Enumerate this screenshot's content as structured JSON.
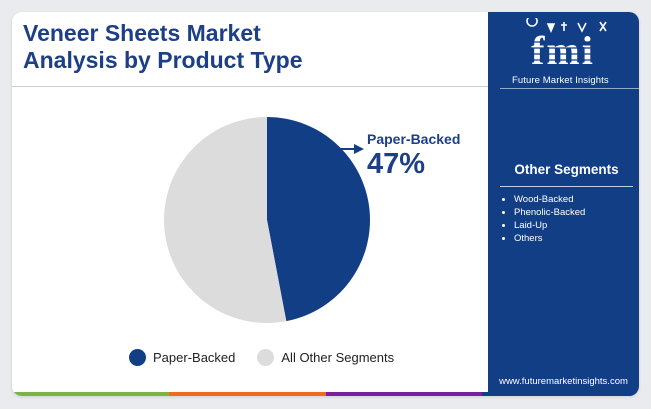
{
  "title": {
    "line1": "Veneer Sheets Market",
    "line2": "Analysis by Product Type"
  },
  "chart_data": {
    "type": "pie",
    "title": "Veneer Sheets Market Analysis by Product Type",
    "slices": [
      {
        "label": "Paper-Backed",
        "value": 47,
        "color": "#123e86"
      },
      {
        "label": "All Other Segments",
        "value": 53,
        "color": "#dcdcdd"
      }
    ],
    "callout": {
      "label": "Paper-Backed",
      "value_text": "47%"
    },
    "legend": {
      "position": "bottom",
      "items": [
        {
          "label": "Paper-Backed",
          "color": "#123e86"
        },
        {
          "label": "All Other Segments",
          "color": "#dcdcdd"
        }
      ]
    }
  },
  "sidebar": {
    "logo_text": "fmi",
    "logo_caption": "Future Market Insights",
    "other_segments_title": "Other Segments",
    "other_segments": [
      "Wood-Backed",
      "Phenolic-Backed",
      "Laid-Up",
      "Others"
    ],
    "website": "www.futuremarketinsights.com"
  },
  "colors": {
    "brand_blue": "#123e86",
    "title_blue": "#1d3f86",
    "bottom_bar": [
      "#7cb342",
      "#f26b1d",
      "#7b1fa2",
      "#123e86"
    ]
  }
}
